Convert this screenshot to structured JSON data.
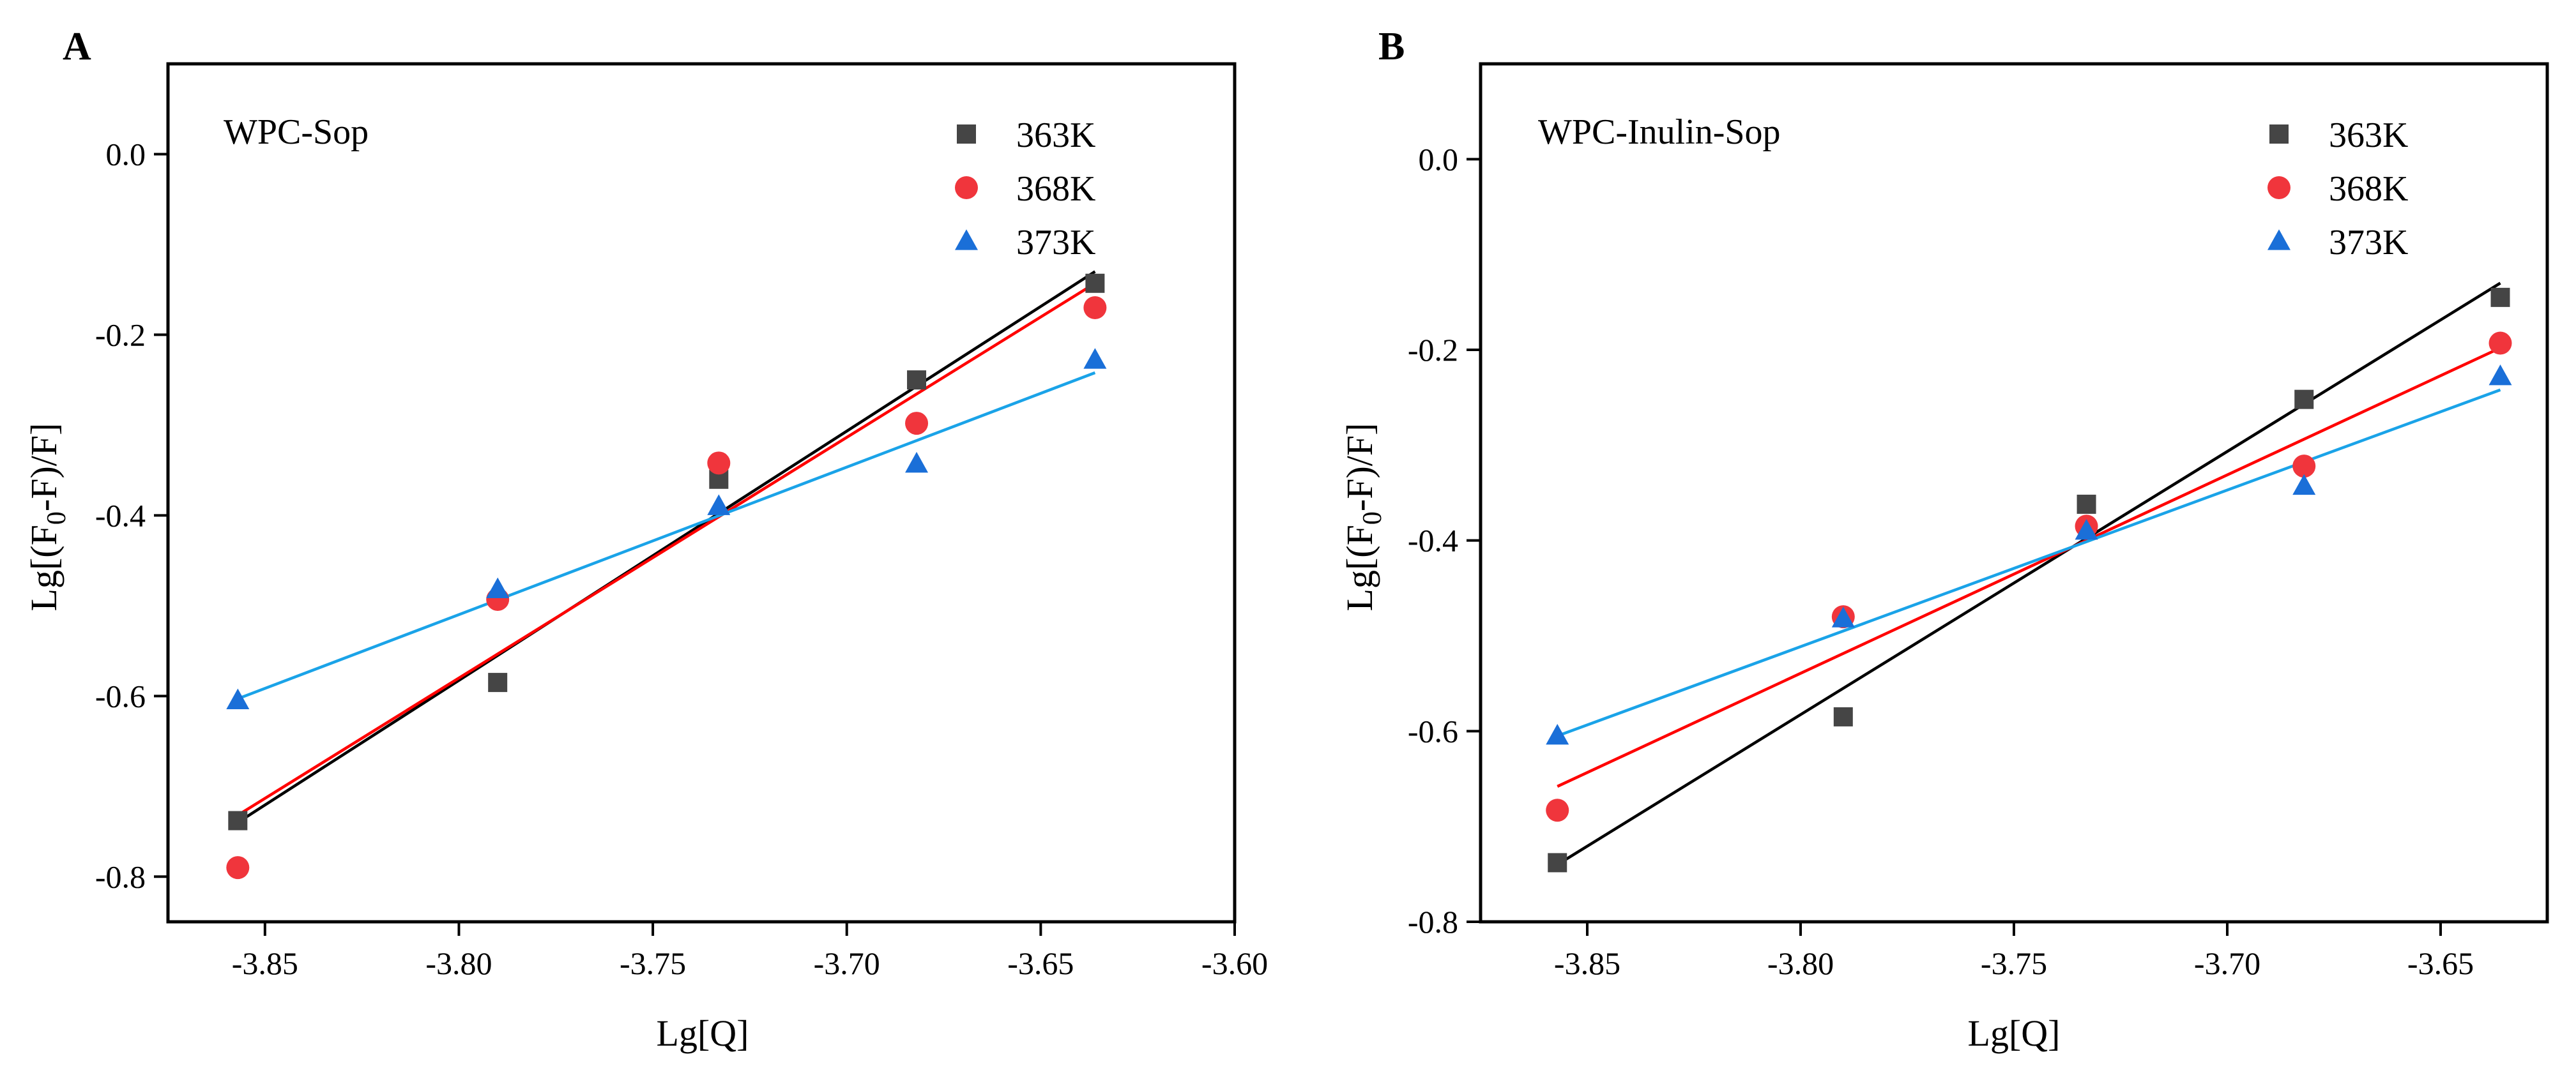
{
  "chart_data": [
    {
      "type": "scatter",
      "panel_label": "A",
      "title": "WPC-Sop",
      "xlabel": "Lg[Q]",
      "ylabel": "Lg[(F0-F)/F]",
      "ylabel_parts": {
        "pre": "Lg[(F",
        "sub": "0",
        "post": "-F)/F]"
      },
      "xlim": [
        -3.875,
        -3.6
      ],
      "ylim": [
        -0.85,
        0.1
      ],
      "xticks": [
        -3.85,
        -3.8,
        -3.75,
        -3.7,
        -3.65,
        -3.6
      ],
      "xtick_labels": [
        "-3.85",
        "-3.80",
        "-3.75",
        "-3.70",
        "-3.65",
        "-3.60"
      ],
      "yticks": [
        0.0,
        -0.2,
        -0.4,
        -0.6,
        -0.8
      ],
      "ytick_labels": [
        "0.0",
        "-0.2",
        "-0.4",
        "-0.6",
        "-0.8"
      ],
      "grid": false,
      "legend_position": "top-right",
      "series": [
        {
          "name": "363K",
          "marker": "square",
          "color": "#454545",
          "line_color": "#000000",
          "x": [
            -3.857,
            -3.79,
            -3.733,
            -3.682,
            -3.636
          ],
          "y": [
            -0.738,
            -0.585,
            -0.36,
            -0.25,
            -0.143
          ],
          "fit": {
            "x": [
              -3.857,
              -3.636
            ],
            "y": [
              -0.74,
              -0.13
            ]
          }
        },
        {
          "name": "368K",
          "marker": "circle",
          "color": "#f0353c",
          "line_color": "#ff0000",
          "x": [
            -3.857,
            -3.79,
            -3.733,
            -3.682,
            -3.636
          ],
          "y": [
            -0.79,
            -0.493,
            -0.342,
            -0.298,
            -0.17
          ],
          "fit": {
            "x": [
              -3.857,
              -3.636
            ],
            "y": [
              -0.732,
              -0.143
            ]
          }
        },
        {
          "name": "373K",
          "marker": "triangle",
          "color": "#1a6fd8",
          "line_color": "#1aa3e8",
          "x": [
            -3.857,
            -3.79,
            -3.733,
            -3.682,
            -3.636
          ],
          "y": [
            -0.605,
            -0.482,
            -0.39,
            -0.343,
            -0.228
          ],
          "fit": {
            "x": [
              -3.857,
              -3.636
            ],
            "y": [
              -0.603,
              -0.242
            ]
          }
        }
      ]
    },
    {
      "type": "scatter",
      "panel_label": "B",
      "title": "WPC-Inulin-Sop",
      "xlabel": "Lg[Q]",
      "ylabel": "Lg[(F0-F)/F]",
      "ylabel_parts": {
        "pre": "Lg[(F",
        "sub": "0",
        "post": "-F)/F]"
      },
      "xlim": [
        -3.875,
        -3.625
      ],
      "ylim": [
        -0.8,
        0.1
      ],
      "xticks": [
        -3.85,
        -3.8,
        -3.75,
        -3.7,
        -3.65
      ],
      "xtick_labels": [
        "-3.85",
        "-3.80",
        "-3.75",
        "-3.70",
        "-3.65"
      ],
      "yticks": [
        0.0,
        -0.2,
        -0.4,
        -0.6,
        -0.8
      ],
      "ytick_labels": [
        "0.0",
        "-0.2",
        "-0.4",
        "-0.6",
        "-0.8"
      ],
      "grid": false,
      "legend_position": "top-right",
      "series": [
        {
          "name": "363K",
          "marker": "square",
          "color": "#454545",
          "line_color": "#000000",
          "x": [
            -3.857,
            -3.79,
            -3.733,
            -3.682,
            -3.636
          ],
          "y": [
            -0.738,
            -0.585,
            -0.362,
            -0.252,
            -0.145
          ],
          "fit": {
            "x": [
              -3.857,
              -3.636
            ],
            "y": [
              -0.74,
              -0.13
            ]
          }
        },
        {
          "name": "368K",
          "marker": "circle",
          "color": "#f0353c",
          "line_color": "#ff0000",
          "x": [
            -3.857,
            -3.79,
            -3.733,
            -3.682,
            -3.636
          ],
          "y": [
            -0.683,
            -0.48,
            -0.385,
            -0.322,
            -0.193
          ],
          "fit": {
            "x": [
              -3.857,
              -3.636
            ],
            "y": [
              -0.658,
              -0.198
            ]
          }
        },
        {
          "name": "373K",
          "marker": "triangle",
          "color": "#1a6fd8",
          "line_color": "#1aa3e8",
          "x": [
            -3.857,
            -3.79,
            -3.733,
            -3.682,
            -3.636
          ],
          "y": [
            -0.605,
            -0.482,
            -0.39,
            -0.343,
            -0.228
          ],
          "fit": {
            "x": [
              -3.857,
              -3.636
            ],
            "y": [
              -0.605,
              -0.242
            ]
          }
        }
      ]
    }
  ]
}
